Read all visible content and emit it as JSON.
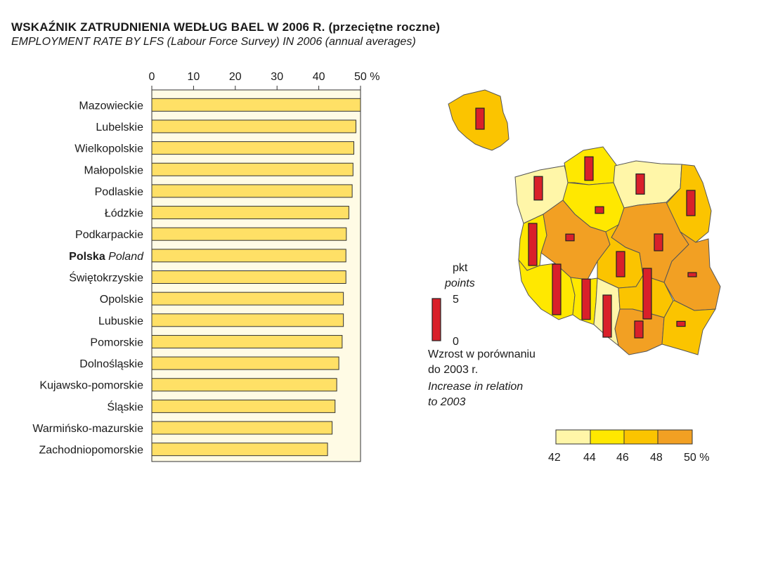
{
  "title": "WSKAŹNIK ZATRUDNIENIA WEDŁUG BAEL W 2006 R. (przeciętne roczne)",
  "subtitle": "EMPLOYMENT RATE BY LFS (Labour Force Survey) IN 2006 (annual averages)",
  "chart_data": [
    {
      "type": "bar",
      "orientation": "horizontal",
      "x_ticks": [
        "0",
        "10",
        "20",
        "30",
        "40",
        "50 %"
      ],
      "xlim": [
        0,
        50
      ],
      "grid": false,
      "categories": [
        {
          "label": "Mazowieckie",
          "value": 50.0
        },
        {
          "label": "Lubelskie",
          "value": 48.9
        },
        {
          "label": "Wielkopolskie",
          "value": 48.4
        },
        {
          "label": "Małopolskie",
          "value": 48.2
        },
        {
          "label": "Podlaskie",
          "value": 48.0
        },
        {
          "label": "Łódzkie",
          "value": 47.2
        },
        {
          "label": "Podkarpackie",
          "value": 46.6
        },
        {
          "label": "Polska",
          "label_en": "Poland",
          "value": 46.5,
          "highlight": true
        },
        {
          "label": "Świętokrzyskie",
          "value": 46.5
        },
        {
          "label": "Opolskie",
          "value": 45.9
        },
        {
          "label": "Lubuskie",
          "value": 45.9
        },
        {
          "label": "Pomorskie",
          "value": 45.6
        },
        {
          "label": "Dolnośląskie",
          "value": 44.8
        },
        {
          "label": "Kujawsko-pomorskie",
          "value": 44.3
        },
        {
          "label": "Śląskie",
          "value": 43.9
        },
        {
          "label": "Warmińsko-mazurskie",
          "value": 43.2
        },
        {
          "label": "Zachodniopomorskie",
          "value": 42.1
        }
      ],
      "colors": {
        "bar": "#ffe066",
        "bar_stroke": "#333333",
        "plot_bg": "#fffbe5"
      }
    },
    {
      "type": "map",
      "legend_classes": {
        "ticks": [
          "42",
          "44",
          "46",
          "48",
          "50 %"
        ],
        "colors": [
          "#fff6a8",
          "#ffe800",
          "#fbc400",
          "#f2a023"
        ]
      },
      "increase_scale": {
        "unit_pl": "pkt",
        "unit_en": "points",
        "max_label": "5",
        "min_label": "0",
        "caption_pl": [
          "Wzrost w porównaniu",
          "do 2003 r."
        ],
        "caption_en": [
          "Increase in relation",
          "to 2003"
        ],
        "bar_color": "#d9202a"
      },
      "increases": {
        "Polska": 2.5,
        "Zachodniopomorskie": 2.8,
        "Pomorskie": 2.8,
        "Warmińsko-mazurskie": 2.4,
        "Podlaskie": 3.0,
        "Kujawsko-pomorskie": 0.8,
        "Wielkopolskie": 0.8,
        "Mazowieckie": 2.0,
        "Lubuskie": 5.0,
        "Łódzkie": 3.0,
        "Lubelskie": 0.5,
        "Dolnośląskie": 6.0,
        "Opolskie": 4.8,
        "Śląskie": 5.0,
        "Świętokrzyskie": 6.0,
        "Małopolskie": 2.0,
        "Podkarpackie": 0.6
      }
    }
  ]
}
